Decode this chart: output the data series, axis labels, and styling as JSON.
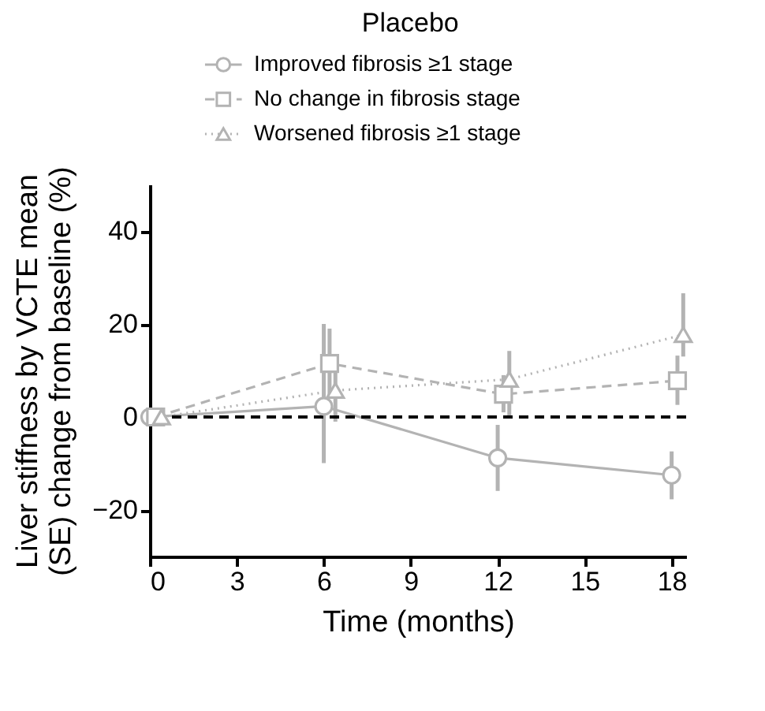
{
  "chart_data": {
    "type": "line",
    "legend_title": "Placebo",
    "xlabel": "Time (months)",
    "ylabel": "Liver stiffness by VCTE mean\n(SE) change from baseline (%)",
    "series": [
      {
        "name": "Improved fibrosis ≥1 stage",
        "color": "#b3b3b3",
        "marker": "circle",
        "line_style": "solid",
        "x": [
          0,
          6,
          12,
          18
        ],
        "values": [
          0,
          2.3,
          -8.8,
          -12.5
        ],
        "errors": [
          null,
          [
            -9.9,
            20
          ],
          [
            -15.9,
            -1.7
          ],
          [
            -17.7,
            -7.4
          ]
        ]
      },
      {
        "name": "No change in fibrosis stage",
        "color": "#b3b3b3",
        "marker": "square",
        "line_style": "dashed",
        "x": [
          0.2,
          6.2,
          12.2,
          18.2
        ],
        "values": [
          0,
          11.5,
          4.9,
          7.8
        ],
        "errors": [
          null,
          [
            4,
            19
          ],
          [
            1,
            9
          ],
          [
            2.6,
            13.2
          ]
        ]
      },
      {
        "name": "Worsened fibrosis ≥1 stage",
        "color": "#b3b3b3",
        "marker": "triangle",
        "line_style": "dotted",
        "x": [
          0.4,
          6.4,
          12.4,
          18.4
        ],
        "values": [
          0,
          5.7,
          8.1,
          17.7
        ],
        "errors": [
          null,
          [
            -1,
            12
          ],
          [
            0.3,
            14.2
          ],
          [
            13,
            26.6
          ]
        ]
      }
    ],
    "xlim": [
      0,
      18.5
    ],
    "xticks": [
      0,
      3,
      6,
      9,
      12,
      15,
      18
    ],
    "ylim": [
      -30,
      50
    ],
    "yticks": [
      -20,
      0,
      20,
      40
    ],
    "ref_lines": [
      {
        "axis": "y",
        "value": 0,
        "color": "#000000",
        "line_style": "dashed"
      }
    ],
    "grid": false,
    "legend": "top"
  }
}
